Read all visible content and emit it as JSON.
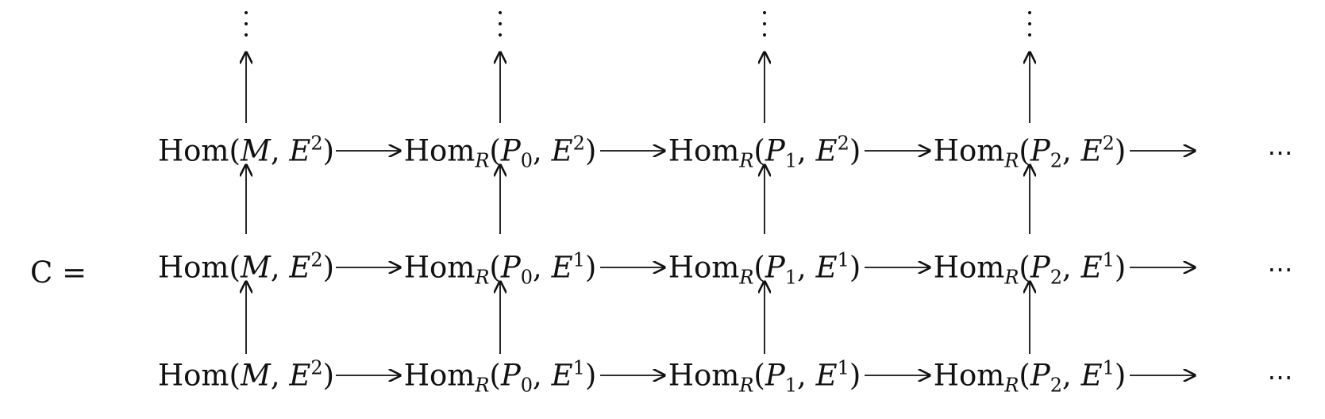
{
  "prefix_label": "C =",
  "continuation_symbol": "⋯",
  "rows": [
    {
      "terms": [
        {
          "hom": "Hom",
          "sub": "",
          "arg1": "M",
          "arg1_sub": "",
          "arg2": "E",
          "arg2_sup": "2"
        },
        {
          "hom": "Hom",
          "sub": "R",
          "arg1": "P",
          "arg1_sub": "0",
          "arg2": "E",
          "arg2_sup": "2"
        },
        {
          "hom": "Hom",
          "sub": "R",
          "arg1": "P",
          "arg1_sub": "1",
          "arg2": "E",
          "arg2_sup": "2"
        },
        {
          "hom": "Hom",
          "sub": "R",
          "arg1": "P",
          "arg1_sub": "2",
          "arg2": "E",
          "arg2_sup": "2"
        }
      ]
    },
    {
      "terms": [
        {
          "hom": "Hom",
          "sub": "",
          "arg1": "M",
          "arg1_sub": "",
          "arg2": "E",
          "arg2_sup": "2"
        },
        {
          "hom": "Hom",
          "sub": "R",
          "arg1": "P",
          "arg1_sub": "0",
          "arg2": "E",
          "arg2_sup": "1"
        },
        {
          "hom": "Hom",
          "sub": "R",
          "arg1": "P",
          "arg1_sub": "1",
          "arg2": "E",
          "arg2_sup": "1"
        },
        {
          "hom": "Hom",
          "sub": "R",
          "arg1": "P",
          "arg1_sub": "2",
          "arg2": "E",
          "arg2_sup": "1"
        }
      ]
    },
    {
      "terms": [
        {
          "hom": "Hom",
          "sub": "",
          "arg1": "M",
          "arg1_sub": "",
          "arg2": "E",
          "arg2_sup": "2"
        },
        {
          "hom": "Hom",
          "sub": "R",
          "arg1": "P",
          "arg1_sub": "0",
          "arg2": "E",
          "arg2_sup": "1"
        },
        {
          "hom": "Hom",
          "sub": "R",
          "arg1": "P",
          "arg1_sub": "1",
          "arg2": "E",
          "arg2_sup": "1"
        },
        {
          "hom": "Hom",
          "sub": "R",
          "arg1": "P",
          "arg1_sub": "2",
          "arg2": "E",
          "arg2_sup": "1"
        }
      ]
    }
  ]
}
